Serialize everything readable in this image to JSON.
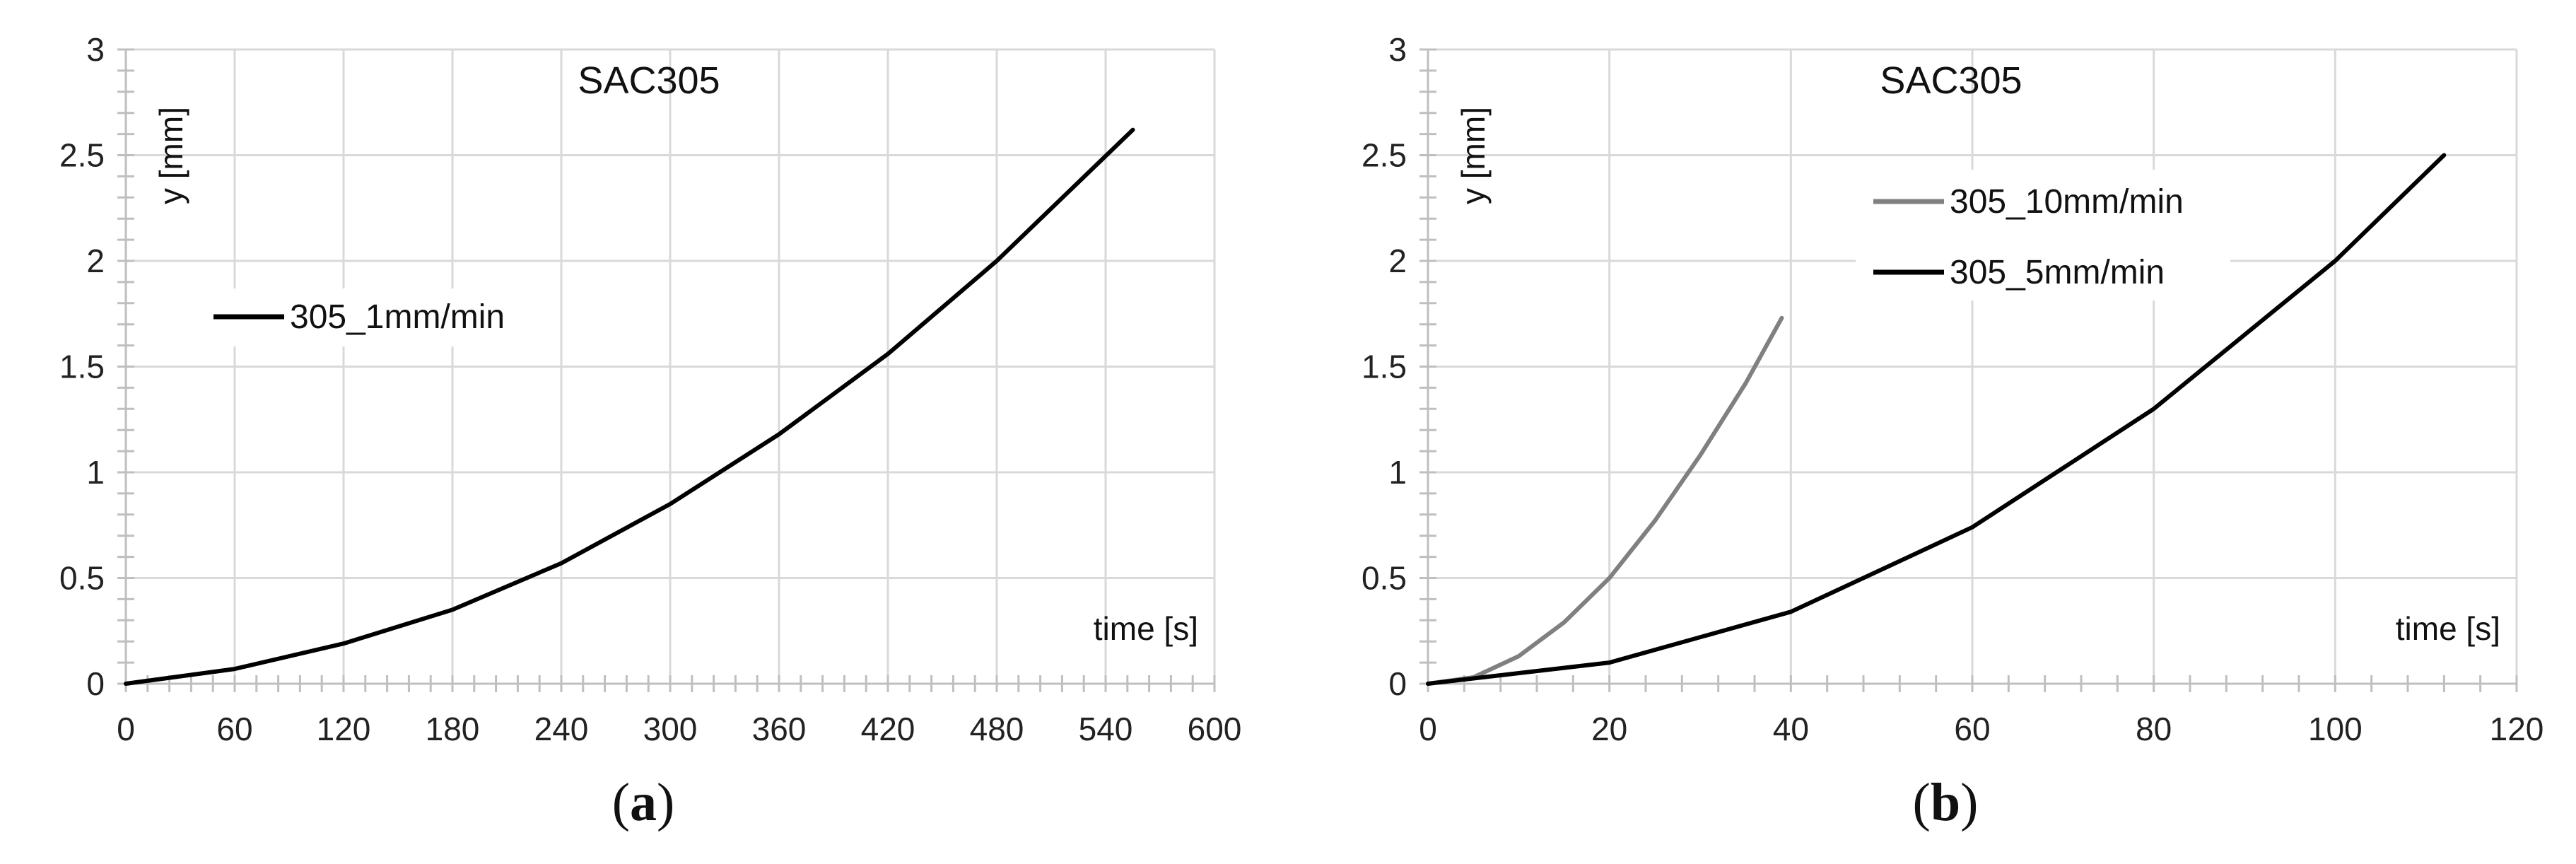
{
  "chart_data": [
    {
      "panel_label": "a",
      "type": "line",
      "title": "SAC305",
      "xlabel": "time [s]",
      "ylabel": "y [mm]",
      "xlim": [
        0,
        600
      ],
      "ylim": [
        0,
        3
      ],
      "xticks": [
        0,
        60,
        120,
        180,
        240,
        300,
        360,
        420,
        480,
        540,
        600
      ],
      "yticks": [
        0,
        0.5,
        1,
        1.5,
        2,
        2.5,
        3
      ],
      "grid": true,
      "legend_position": "middle-left",
      "series": [
        {
          "name": "305_1mm/min",
          "color": "#000000",
          "x": [
            0,
            60,
            120,
            180,
            240,
            300,
            360,
            420,
            480,
            555
          ],
          "y": [
            0,
            0.07,
            0.19,
            0.35,
            0.57,
            0.85,
            1.18,
            1.56,
            2.0,
            2.62
          ]
        }
      ]
    },
    {
      "panel_label": "b",
      "type": "line",
      "title": "SAC305",
      "xlabel": "time [s]",
      "ylabel": "y [mm]",
      "xlim": [
        0,
        120
      ],
      "ylim": [
        0,
        3
      ],
      "xticks": [
        0,
        20,
        40,
        60,
        80,
        100,
        120
      ],
      "yticks": [
        0,
        0.5,
        1,
        1.5,
        2,
        2.5,
        3
      ],
      "grid": true,
      "legend_position": "top-left",
      "series": [
        {
          "name": "305_10mm/min",
          "color": "#808080",
          "x": [
            0,
            5,
            10,
            15,
            20,
            25,
            30,
            35,
            39
          ],
          "y": [
            0,
            0.03,
            0.13,
            0.29,
            0.5,
            0.77,
            1.08,
            1.42,
            1.73
          ]
        },
        {
          "name": "305_5mm/min",
          "color": "#000000",
          "x": [
            0,
            20,
            40,
            60,
            80,
            100,
            112
          ],
          "y": [
            0,
            0.1,
            0.34,
            0.74,
            1.3,
            2.0,
            2.5
          ]
        }
      ]
    }
  ]
}
